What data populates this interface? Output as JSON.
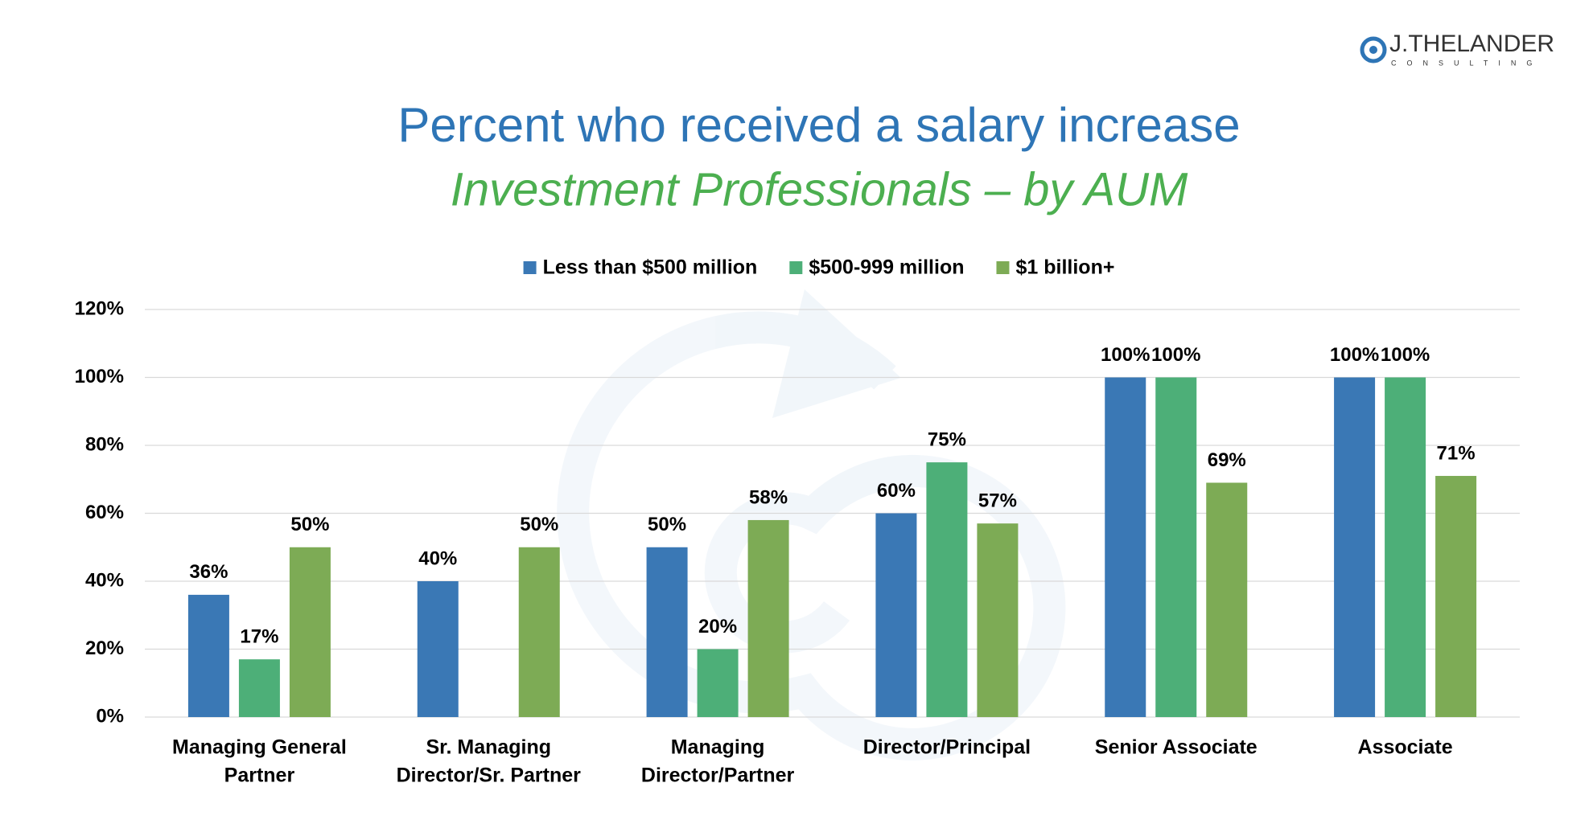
{
  "logo": {
    "name": "J.THELANDER",
    "tagline": "CONSULTING"
  },
  "chart_data": {
    "type": "bar",
    "title": "Percent who received a salary increase",
    "subtitle": "Investment Professionals – by AUM",
    "categories": [
      [
        "Managing General",
        "Partner"
      ],
      [
        "Sr. Managing",
        "Director/Sr. Partner"
      ],
      [
        "Managing",
        "Director/Partner"
      ],
      [
        "Director/Principal"
      ],
      [
        "Senior Associate"
      ],
      [
        "Associate"
      ]
    ],
    "series": [
      {
        "name": "Less than $500 million",
        "color": "#3a78b5",
        "values": [
          36,
          40,
          50,
          60,
          100,
          100
        ],
        "value_labels": [
          "36%",
          "40%",
          "50%",
          "60%",
          "100%",
          "100%"
        ]
      },
      {
        "name": "$500-999 million",
        "color": "#4daf78",
        "values": [
          17,
          null,
          20,
          75,
          100,
          100
        ],
        "value_labels": [
          "17%",
          null,
          "20%",
          "75%",
          "100%",
          "100%"
        ]
      },
      {
        "name": "$1 billion+",
        "color": "#7dab55",
        "values": [
          50,
          50,
          58,
          57,
          69,
          71
        ],
        "value_labels": [
          "50%",
          "50%",
          "58%",
          "57%",
          "69%",
          "71%"
        ]
      }
    ],
    "ylim": [
      0,
      120
    ],
    "yticks": [
      {
        "value": 0,
        "label": "0%"
      },
      {
        "value": 20,
        "label": "20%"
      },
      {
        "value": 40,
        "label": "40%"
      },
      {
        "value": 60,
        "label": "60%"
      },
      {
        "value": 80,
        "label": "80%"
      },
      {
        "value": 100,
        "label": "100%"
      },
      {
        "value": 120,
        "label": "120%"
      }
    ],
    "grid": true
  }
}
